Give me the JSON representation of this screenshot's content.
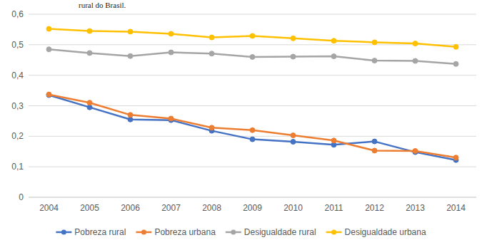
{
  "chart_data": {
    "type": "line",
    "title": "rural do Brasil.",
    "categories": [
      "2004",
      "2005",
      "2006",
      "2007",
      "2008",
      "2009",
      "2010",
      "2011",
      "2012",
      "2013",
      "2014"
    ],
    "series": [
      {
        "name": "Pobreza rural",
        "color": "#4472c4",
        "marker": "circle",
        "values": [
          0.335,
          0.295,
          0.255,
          0.253,
          0.218,
          0.19,
          0.182,
          0.172,
          0.183,
          0.148,
          0.122
        ]
      },
      {
        "name": "Pobreza urbana",
        "color": "#ed7d31",
        "marker": "circle",
        "values": [
          0.337,
          0.31,
          0.27,
          0.258,
          0.228,
          0.22,
          0.203,
          0.186,
          0.153,
          0.152,
          0.13
        ]
      },
      {
        "name": "Desigualdade rural",
        "color": "#a5a5a5",
        "marker": "circle",
        "values": [
          0.485,
          0.473,
          0.463,
          0.475,
          0.471,
          0.46,
          0.461,
          0.462,
          0.448,
          0.447,
          0.437
        ]
      },
      {
        "name": "Desigualdade urbana",
        "color": "#ffc000",
        "marker": "circle",
        "values": [
          0.552,
          0.545,
          0.543,
          0.536,
          0.524,
          0.529,
          0.521,
          0.513,
          0.508,
          0.504,
          0.493
        ]
      }
    ],
    "ylim": [
      0,
      0.6
    ],
    "yticks": [
      0,
      {
        "value": 0.1,
        "label": "0,1"
      },
      {
        "value": 0.2,
        "label": "0,2"
      },
      {
        "value": 0.3,
        "label": "0,3"
      },
      {
        "value": 0.4,
        "label": "0,4"
      },
      {
        "value": 0.5,
        "label": "0,5"
      },
      {
        "value": 0.6,
        "label": "0,6"
      }
    ],
    "grid": true,
    "legend": "bottom"
  }
}
